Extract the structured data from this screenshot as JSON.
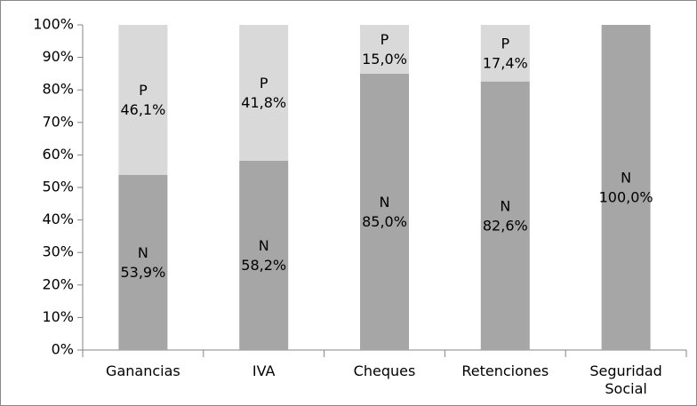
{
  "chart_data": {
    "type": "bar",
    "stacked": true,
    "categories": [
      "Ganancias",
      "IVA",
      "Cheques",
      "Retenciones",
      "Seguridad Social"
    ],
    "series": [
      {
        "name": "N",
        "color": "#a6a6a6",
        "values": [
          53.9,
          58.2,
          85.0,
          82.6,
          100.0
        ],
        "value_labels": [
          "53,9%",
          "58,2%",
          "85,0%",
          "82,6%",
          "100,0%"
        ]
      },
      {
        "name": "P",
        "color": "#d9d9d9",
        "values": [
          46.1,
          41.8,
          15.0,
          17.4,
          null
        ],
        "value_labels": [
          "46,1%",
          "41,8%",
          "15,0%",
          "17,4%",
          null
        ]
      }
    ],
    "ylim": [
      0,
      100
    ],
    "yticks": [
      {
        "value": 0,
        "label": "0%"
      },
      {
        "value": 10,
        "label": "10%"
      },
      {
        "value": 20,
        "label": "20%"
      },
      {
        "value": 30,
        "label": "30%"
      },
      {
        "value": 40,
        "label": "40%"
      },
      {
        "value": 50,
        "label": "50%"
      },
      {
        "value": 60,
        "label": "60%"
      },
      {
        "value": 70,
        "label": "70%"
      },
      {
        "value": 80,
        "label": "80%"
      },
      {
        "value": 90,
        "label": "90%"
      },
      {
        "value": 100,
        "label": "100%"
      }
    ],
    "grid": false
  }
}
